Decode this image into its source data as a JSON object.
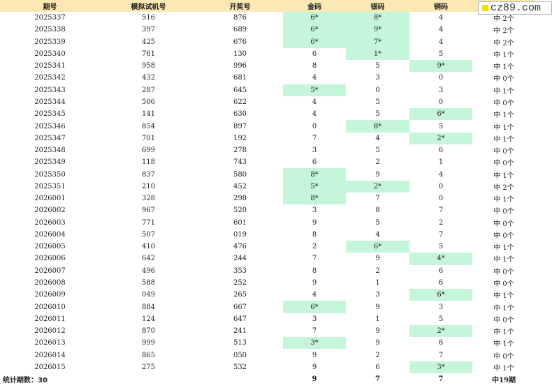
{
  "headers": [
    "期号",
    "模拟试机号",
    "开奖号",
    "金码",
    "银码",
    "铜码",
    ""
  ],
  "badge": {
    "text": "cz89.com",
    "color": "#f2e000"
  },
  "hit_color": "#c6f6da",
  "rows": [
    {
      "issue": "2025337",
      "sim": "516",
      "draw": "876",
      "gold": "6*",
      "gold_hit": true,
      "silver": "8*",
      "silver_hit": true,
      "bronze": "4",
      "bronze_hit": false,
      "result": "中 2个"
    },
    {
      "issue": "2025338",
      "sim": "397",
      "draw": "689",
      "gold": "6*",
      "gold_hit": true,
      "silver": "9*",
      "silver_hit": true,
      "bronze": "4",
      "bronze_hit": false,
      "result": "中 2个"
    },
    {
      "issue": "2025339",
      "sim": "425",
      "draw": "676",
      "gold": "6*",
      "gold_hit": true,
      "silver": "7*",
      "silver_hit": true,
      "bronze": "4",
      "bronze_hit": false,
      "result": "中 2个"
    },
    {
      "issue": "2025340",
      "sim": "761",
      "draw": "130",
      "gold": "6",
      "gold_hit": false,
      "silver": "1*",
      "silver_hit": true,
      "bronze": "5",
      "bronze_hit": false,
      "result": "中 1个"
    },
    {
      "issue": "2025341",
      "sim": "958",
      "draw": "996",
      "gold": "8",
      "gold_hit": false,
      "silver": "5",
      "silver_hit": false,
      "bronze": "9*",
      "bronze_hit": true,
      "result": "中 1个"
    },
    {
      "issue": "2025342",
      "sim": "432",
      "draw": "681",
      "gold": "4",
      "gold_hit": false,
      "silver": "3",
      "silver_hit": false,
      "bronze": "0",
      "bronze_hit": false,
      "result": "中 0个"
    },
    {
      "issue": "2025343",
      "sim": "287",
      "draw": "645",
      "gold": "5*",
      "gold_hit": true,
      "silver": "0",
      "silver_hit": false,
      "bronze": "3",
      "bronze_hit": false,
      "result": "中 1个"
    },
    {
      "issue": "2025344",
      "sim": "506",
      "draw": "622",
      "gold": "4",
      "gold_hit": false,
      "silver": "5",
      "silver_hit": false,
      "bronze": "0",
      "bronze_hit": false,
      "result": "中 0个"
    },
    {
      "issue": "2025345",
      "sim": "141",
      "draw": "630",
      "gold": "4",
      "gold_hit": false,
      "silver": "5",
      "silver_hit": false,
      "bronze": "6*",
      "bronze_hit": true,
      "result": "中 1个"
    },
    {
      "issue": "2025346",
      "sim": "854",
      "draw": "897",
      "gold": "0",
      "gold_hit": false,
      "silver": "8*",
      "silver_hit": true,
      "bronze": "5",
      "bronze_hit": false,
      "result": "中 1个"
    },
    {
      "issue": "2025347",
      "sim": "701",
      "draw": "192",
      "gold": "7",
      "gold_hit": false,
      "silver": "4",
      "silver_hit": false,
      "bronze": "2*",
      "bronze_hit": true,
      "result": "中 1个"
    },
    {
      "issue": "2025348",
      "sim": "699",
      "draw": "278",
      "gold": "3",
      "gold_hit": false,
      "silver": "5",
      "silver_hit": false,
      "bronze": "6",
      "bronze_hit": false,
      "result": "中 0个"
    },
    {
      "issue": "2025349",
      "sim": "118",
      "draw": "743",
      "gold": "6",
      "gold_hit": false,
      "silver": "2",
      "silver_hit": false,
      "bronze": "1",
      "bronze_hit": false,
      "result": "中 0个"
    },
    {
      "issue": "2025350",
      "sim": "837",
      "draw": "580",
      "gold": "8*",
      "gold_hit": true,
      "silver": "9",
      "silver_hit": false,
      "bronze": "4",
      "bronze_hit": false,
      "result": "中 1个"
    },
    {
      "issue": "2025351",
      "sim": "210",
      "draw": "452",
      "gold": "5*",
      "gold_hit": true,
      "silver": "2*",
      "silver_hit": true,
      "bronze": "0",
      "bronze_hit": false,
      "result": "中 2个"
    },
    {
      "issue": "2026001",
      "sim": "328",
      "draw": "298",
      "gold": "8*",
      "gold_hit": true,
      "silver": "7",
      "silver_hit": false,
      "bronze": "0",
      "bronze_hit": false,
      "result": "中 1个"
    },
    {
      "issue": "2026002",
      "sim": "967",
      "draw": "520",
      "gold": "3",
      "gold_hit": false,
      "silver": "8",
      "silver_hit": false,
      "bronze": "7",
      "bronze_hit": false,
      "result": "中 0个"
    },
    {
      "issue": "2026003",
      "sim": "771",
      "draw": "601",
      "gold": "9",
      "gold_hit": false,
      "silver": "5",
      "silver_hit": false,
      "bronze": "2",
      "bronze_hit": false,
      "result": "中 0个"
    },
    {
      "issue": "2026004",
      "sim": "507",
      "draw": "019",
      "gold": "8",
      "gold_hit": false,
      "silver": "4",
      "silver_hit": false,
      "bronze": "7",
      "bronze_hit": false,
      "result": "中 0个"
    },
    {
      "issue": "2026005",
      "sim": "410",
      "draw": "476",
      "gold": "2",
      "gold_hit": false,
      "silver": "6*",
      "silver_hit": true,
      "bronze": "5",
      "bronze_hit": false,
      "result": "中 1个"
    },
    {
      "issue": "2026006",
      "sim": "642",
      "draw": "244",
      "gold": "7",
      "gold_hit": false,
      "silver": "9",
      "silver_hit": false,
      "bronze": "4*",
      "bronze_hit": true,
      "result": "中 1个"
    },
    {
      "issue": "2026007",
      "sim": "496",
      "draw": "353",
      "gold": "8",
      "gold_hit": false,
      "silver": "2",
      "silver_hit": false,
      "bronze": "6",
      "bronze_hit": false,
      "result": "中 0个"
    },
    {
      "issue": "2026008",
      "sim": "588",
      "draw": "252",
      "gold": "9",
      "gold_hit": false,
      "silver": "1",
      "silver_hit": false,
      "bronze": "6",
      "bronze_hit": false,
      "result": "中 0个"
    },
    {
      "issue": "2026009",
      "sim": "049",
      "draw": "265",
      "gold": "4",
      "gold_hit": false,
      "silver": "3",
      "silver_hit": false,
      "bronze": "6*",
      "bronze_hit": true,
      "result": "中 1个"
    },
    {
      "issue": "2026010",
      "sim": "884",
      "draw": "667",
      "gold": "6*",
      "gold_hit": true,
      "silver": "9",
      "silver_hit": false,
      "bronze": "3",
      "bronze_hit": false,
      "result": "中 1个"
    },
    {
      "issue": "2026011",
      "sim": "124",
      "draw": "647",
      "gold": "3",
      "gold_hit": false,
      "silver": "1",
      "silver_hit": false,
      "bronze": "5",
      "bronze_hit": false,
      "result": "中 0个"
    },
    {
      "issue": "2026012",
      "sim": "870",
      "draw": "241",
      "gold": "7",
      "gold_hit": false,
      "silver": "9",
      "silver_hit": false,
      "bronze": "2*",
      "bronze_hit": true,
      "result": "中 1个"
    },
    {
      "issue": "2026013",
      "sim": "999",
      "draw": "513",
      "gold": "3*",
      "gold_hit": true,
      "silver": "9",
      "silver_hit": false,
      "bronze": "6",
      "bronze_hit": false,
      "result": "中 1个"
    },
    {
      "issue": "2026014",
      "sim": "865",
      "draw": "050",
      "gold": "9",
      "gold_hit": false,
      "silver": "2",
      "silver_hit": false,
      "bronze": "7",
      "bronze_hit": false,
      "result": "中 0个"
    },
    {
      "issue": "2026015",
      "sim": "275",
      "draw": "532",
      "gold": "9",
      "gold_hit": false,
      "silver": "6",
      "silver_hit": false,
      "bronze": "3*",
      "bronze_hit": true,
      "result": "中 1个"
    }
  ],
  "footer": {
    "label": "统计期数：30",
    "gold": "9",
    "silver": "7",
    "bronze": "7",
    "result": "中19期"
  }
}
